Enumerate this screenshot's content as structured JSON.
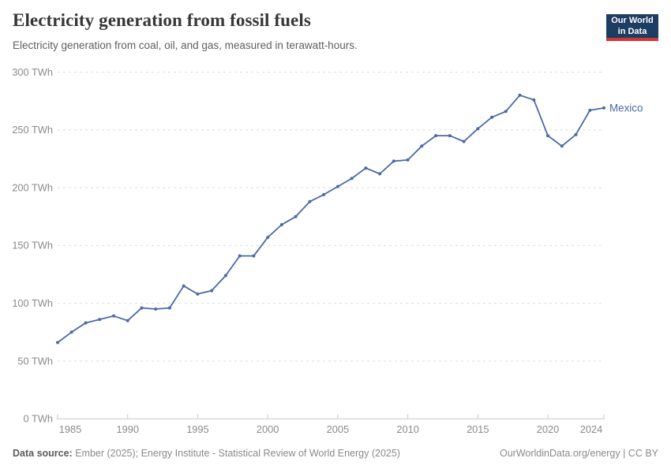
{
  "header": {
    "title": "Electricity generation from fossil fuels",
    "subtitle": "Electricity generation from coal, oil, and gas, measured in terawatt-hours."
  },
  "logo": {
    "line1": "Our World",
    "line2": "in Data"
  },
  "footer": {
    "source_label": "Data source:",
    "source_value": " Ember (2025); Energy Institute - Statistical Review of World Energy (2025)",
    "credit": "OurWorldinData.org/energy | CC BY"
  },
  "colors": {
    "line": "#4a69a5",
    "grid": "#dcdcdc",
    "axis": "#c8c8c8",
    "tick_text": "#8a8a8a",
    "logo_bg": "#1d3d63",
    "logo_bar": "#d13833"
  },
  "chart_data": {
    "type": "line",
    "title": "Electricity generation from fossil fuels",
    "subtitle": "Electricity generation from coal, oil, and gas, measured in terawatt-hours.",
    "unit": "TWh",
    "ylabel": "",
    "xlabel": "",
    "ylim": [
      0,
      300
    ],
    "yticks": [
      0,
      50,
      100,
      150,
      200,
      250,
      300
    ],
    "ytick_suffix": " TWh",
    "xticks": [
      1985,
      1990,
      1995,
      2000,
      2005,
      2010,
      2015,
      2020,
      2024
    ],
    "x_range": [
      1985,
      2024
    ],
    "grid": "horizontal-dashed",
    "legend": "end-label",
    "x": [
      1985,
      1986,
      1987,
      1988,
      1989,
      1990,
      1991,
      1992,
      1993,
      1994,
      1995,
      1996,
      1997,
      1998,
      1999,
      2000,
      2001,
      2002,
      2003,
      2004,
      2005,
      2006,
      2007,
      2008,
      2009,
      2010,
      2011,
      2012,
      2013,
      2014,
      2015,
      2016,
      2017,
      2018,
      2019,
      2020,
      2021,
      2022,
      2023,
      2024
    ],
    "series": [
      {
        "name": "Mexico",
        "values": [
          66,
          75,
          83,
          86,
          89,
          85,
          96,
          95,
          96,
          115,
          108,
          111,
          124,
          141,
          141,
          157,
          168,
          175,
          188,
          194,
          201,
          208,
          217,
          212,
          223,
          224,
          236,
          245,
          245,
          240,
          251,
          261,
          266,
          280,
          276,
          245,
          236,
          246,
          267,
          269
        ]
      }
    ]
  }
}
